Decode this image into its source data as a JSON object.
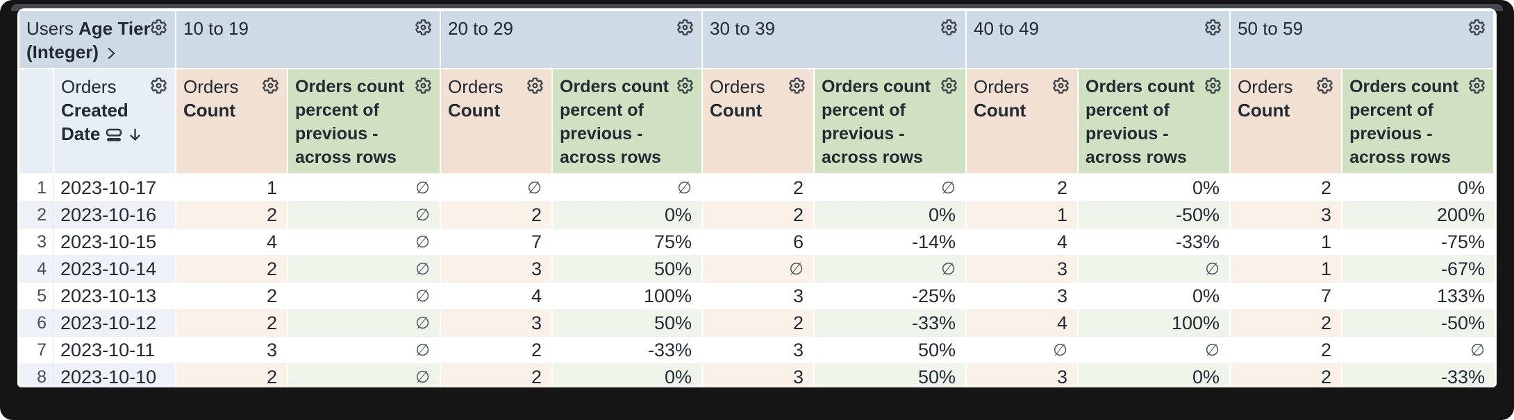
{
  "table": {
    "dimension_header": {
      "view": "Users",
      "field": "Age Tier (Integer)"
    },
    "row_field": {
      "view": "Orders",
      "field": "Created Date"
    },
    "pivot_values": [
      "10 to 19",
      "20 to 29",
      "30 to 39",
      "40 to 49",
      "50 to 59"
    ],
    "measures": {
      "count_view": "Orders",
      "count_field": "Count",
      "percent_label": "Orders count percent of previous - across rows"
    },
    "null_symbol": "∅",
    "rows": [
      {
        "n": "1",
        "date": "2023-10-17",
        "cells": [
          "1",
          "∅",
          "∅",
          "∅",
          "2",
          "∅",
          "2",
          "0%",
          "2",
          "0%"
        ]
      },
      {
        "n": "2",
        "date": "2023-10-16",
        "cells": [
          "2",
          "∅",
          "2",
          "0%",
          "2",
          "0%",
          "1",
          "-50%",
          "3",
          "200%"
        ]
      },
      {
        "n": "3",
        "date": "2023-10-15",
        "cells": [
          "4",
          "∅",
          "7",
          "75%",
          "6",
          "-14%",
          "4",
          "-33%",
          "1",
          "-75%"
        ]
      },
      {
        "n": "4",
        "date": "2023-10-14",
        "cells": [
          "2",
          "∅",
          "3",
          "50%",
          "∅",
          "∅",
          "3",
          "∅",
          "1",
          "-67%"
        ]
      },
      {
        "n": "5",
        "date": "2023-10-13",
        "cells": [
          "2",
          "∅",
          "4",
          "100%",
          "3",
          "-25%",
          "3",
          "0%",
          "7",
          "133%"
        ]
      },
      {
        "n": "6",
        "date": "2023-10-12",
        "cells": [
          "2",
          "∅",
          "3",
          "50%",
          "2",
          "-33%",
          "4",
          "100%",
          "2",
          "-50%"
        ]
      },
      {
        "n": "7",
        "date": "2023-10-11",
        "cells": [
          "3",
          "∅",
          "2",
          "-33%",
          "3",
          "50%",
          "∅",
          "∅",
          "2",
          "∅"
        ]
      },
      {
        "n": "8",
        "date": "2023-10-10",
        "cells": [
          "2",
          "∅",
          "2",
          "0%",
          "3",
          "50%",
          "3",
          "0%",
          "2",
          "-33%"
        ]
      }
    ]
  },
  "icons": {
    "gear": "gear-icon",
    "chevron": "chevron-right-icon",
    "sort_descending": "arrow-down-icon",
    "group_rows": "subtotal-icon"
  },
  "colors": {
    "pivot_header_bg": "#cedae6",
    "dimension_header_bg": "#e8eef5",
    "count_header_bg": "#f2e1d2",
    "percent_header_bg": "#cfe1c1",
    "zebra_dim": "#eef2f8",
    "zebra_count": "#faf1e9",
    "zebra_percent": "#eff5ea",
    "text": "#222b33",
    "frame": "#141414"
  }
}
